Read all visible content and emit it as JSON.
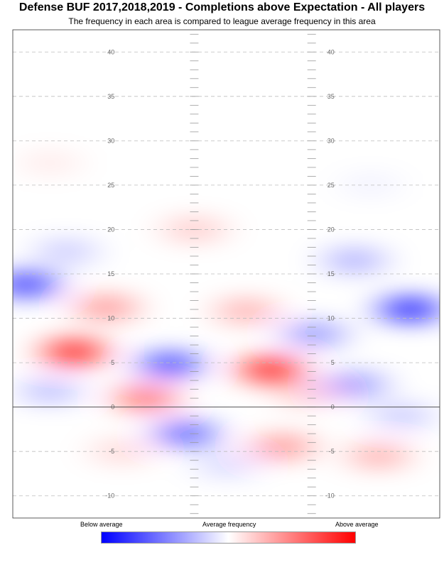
{
  "title": "Defense BUF 2017,2018,2019 - Completions above Expectation - All players",
  "subtitle": "The frequency in each area is compared to league average frequency in this area",
  "chart_data": {
    "type": "heatmap",
    "x_range": [
      -26.65,
      26.65
    ],
    "y_range": [
      -12.5,
      42.5
    ],
    "y_tick_labels": [
      "-10",
      "-5",
      "0",
      "5",
      "10",
      "15",
      "20",
      "25",
      "30",
      "35",
      "40"
    ],
    "line_of_scrimmage": 0,
    "grid": true,
    "color_scale": {
      "low_color": "#0000ff",
      "mid_color": "#ffffff",
      "high_color": "#ff0000",
      "labels": [
        "Below average",
        "Average frequency",
        "Above average"
      ],
      "placement": "bottom"
    },
    "hotspots": [
      {
        "x": -19,
        "y": 6.2,
        "v": 0.85
      },
      {
        "x": 5.5,
        "y": 4.2,
        "v": 0.85
      },
      {
        "x": -10,
        "y": 1.0,
        "v": 0.55
      },
      {
        "x": -15,
        "y": 11.2,
        "v": 0.4
      },
      {
        "x": 2.5,
        "y": 10.8,
        "v": 0.3
      },
      {
        "x": -4,
        "y": 20.0,
        "v": 0.2
      },
      {
        "x": -22,
        "y": 27.5,
        "v": 0.08
      },
      {
        "x": 7,
        "y": -4.5,
        "v": 0.4
      },
      {
        "x": 19,
        "y": -5.5,
        "v": 0.3
      },
      {
        "x": -13,
        "y": -5.0,
        "v": 0.15
      },
      {
        "x": 10,
        "y": 1.5,
        "v": 0.2
      },
      {
        "x": 23,
        "y": 11.0,
        "v": -0.85
      },
      {
        "x": -25,
        "y": 13.8,
        "v": -0.75
      },
      {
        "x": -7,
        "y": 4.8,
        "v": -0.7
      },
      {
        "x": -5,
        "y": -3.0,
        "v": -0.6
      },
      {
        "x": 11,
        "y": 8.2,
        "v": -0.4
      },
      {
        "x": 16,
        "y": 2.5,
        "v": -0.4
      },
      {
        "x": -22,
        "y": 1.8,
        "v": -0.25
      },
      {
        "x": 16,
        "y": 16.5,
        "v": -0.3
      },
      {
        "x": -20,
        "y": 17.5,
        "v": -0.2
      },
      {
        "x": 22,
        "y": -1.0,
        "v": -0.2
      },
      {
        "x": 0,
        "y": -6.5,
        "v": -0.15
      },
      {
        "x": 18,
        "y": 25.0,
        "v": -0.05
      }
    ]
  }
}
